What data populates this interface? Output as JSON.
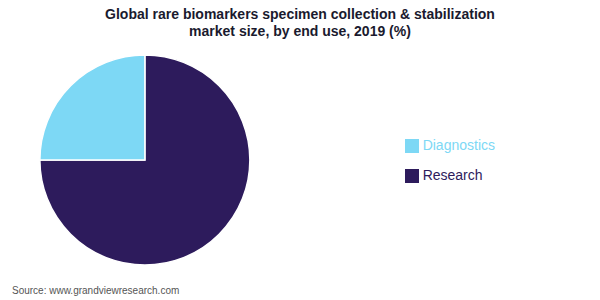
{
  "chart_data": {
    "type": "pie",
    "title": "Global rare biomarkers specimen collection & stabilization",
    "subtitle": "market size, by end use, 2019 (%)",
    "categories": [
      "Research",
      "Diagnostics"
    ],
    "values": [
      75.0,
      25.0
    ],
    "colors": [
      "#2d1b5c",
      "#7dd8f5"
    ],
    "legend": "right",
    "annotations": [
      "Source: www.grandviewresearch.com"
    ]
  }
}
